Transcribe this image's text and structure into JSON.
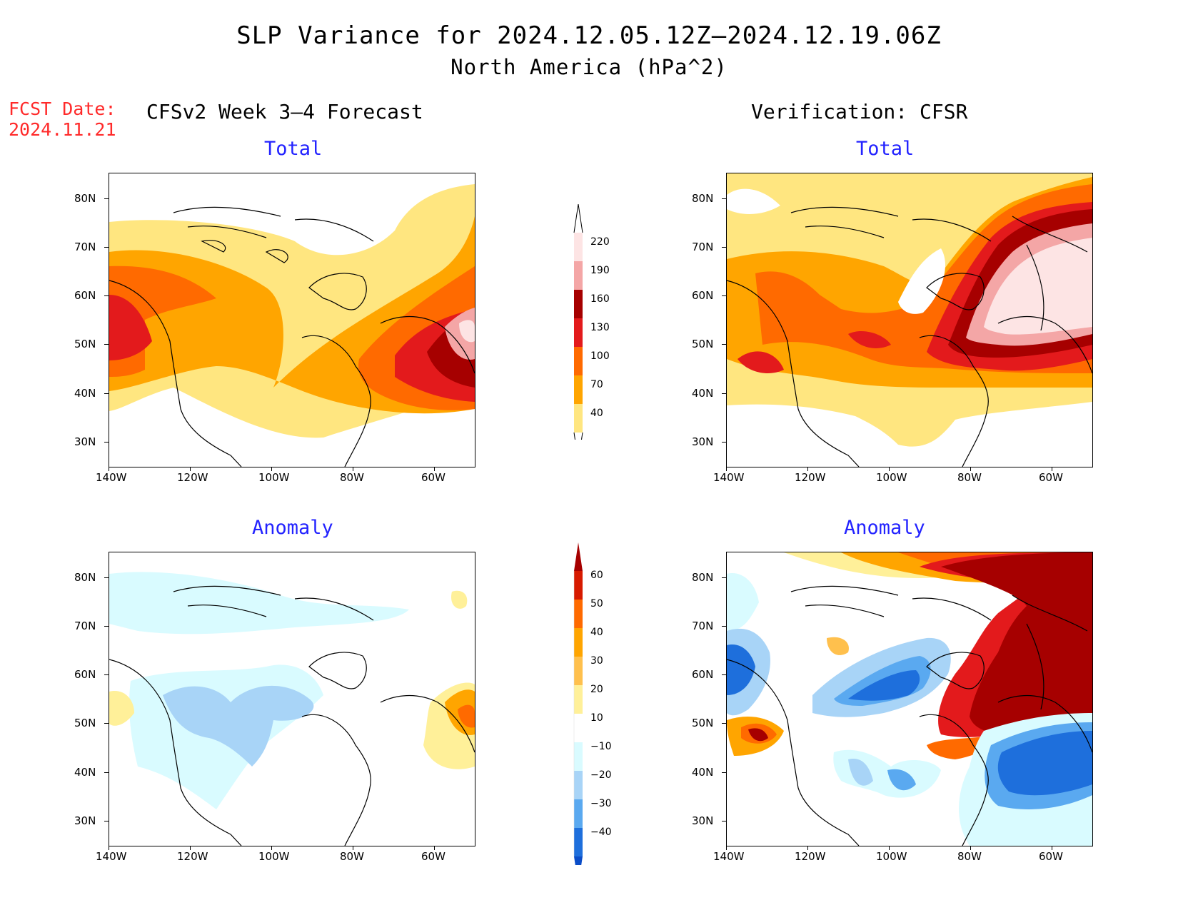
{
  "header": {
    "title": "SLP Variance for 2024.12.05.12Z–2024.12.19.06Z",
    "subtitle": "North America (hPa^2)",
    "fcst_label": "FCST Date:",
    "fcst_date": "2024.11.21"
  },
  "columns": {
    "left": "CFSv2 Week 3–4 Forecast",
    "right": "Verification: CFSR"
  },
  "panels": {
    "top_left": "Total",
    "top_right": "Total",
    "bottom_left": "Anomaly",
    "bottom_right": "Anomaly"
  },
  "axes": {
    "lat_labels": [
      "80N",
      "70N",
      "60N",
      "50N",
      "40N",
      "30N"
    ],
    "lon_labels": [
      "140W",
      "120W",
      "100W",
      "80W",
      "60W"
    ]
  },
  "colorbars": {
    "total": {
      "labels": [
        "220",
        "190",
        "160",
        "130",
        "100",
        "70",
        "40"
      ],
      "colors": [
        "#fde4e4",
        "#f4a6a6",
        "#a60000",
        "#e31a1c",
        "#ff6a00",
        "#ffa500",
        "#ffe680"
      ]
    },
    "anomaly": {
      "labels": [
        "60",
        "50",
        "40",
        "30",
        "20",
        "10",
        "−10",
        "−20",
        "−30",
        "−40"
      ],
      "colors": [
        "#a60000",
        "#d71a00",
        "#ff6a00",
        "#ffa500",
        "#ffc04d",
        "#fff099",
        "#ffffff",
        "#d9fbff",
        "#a8d4f7",
        "#5aa9f0",
        "#1e6fdc",
        "#0b4dc8"
      ]
    }
  }
}
